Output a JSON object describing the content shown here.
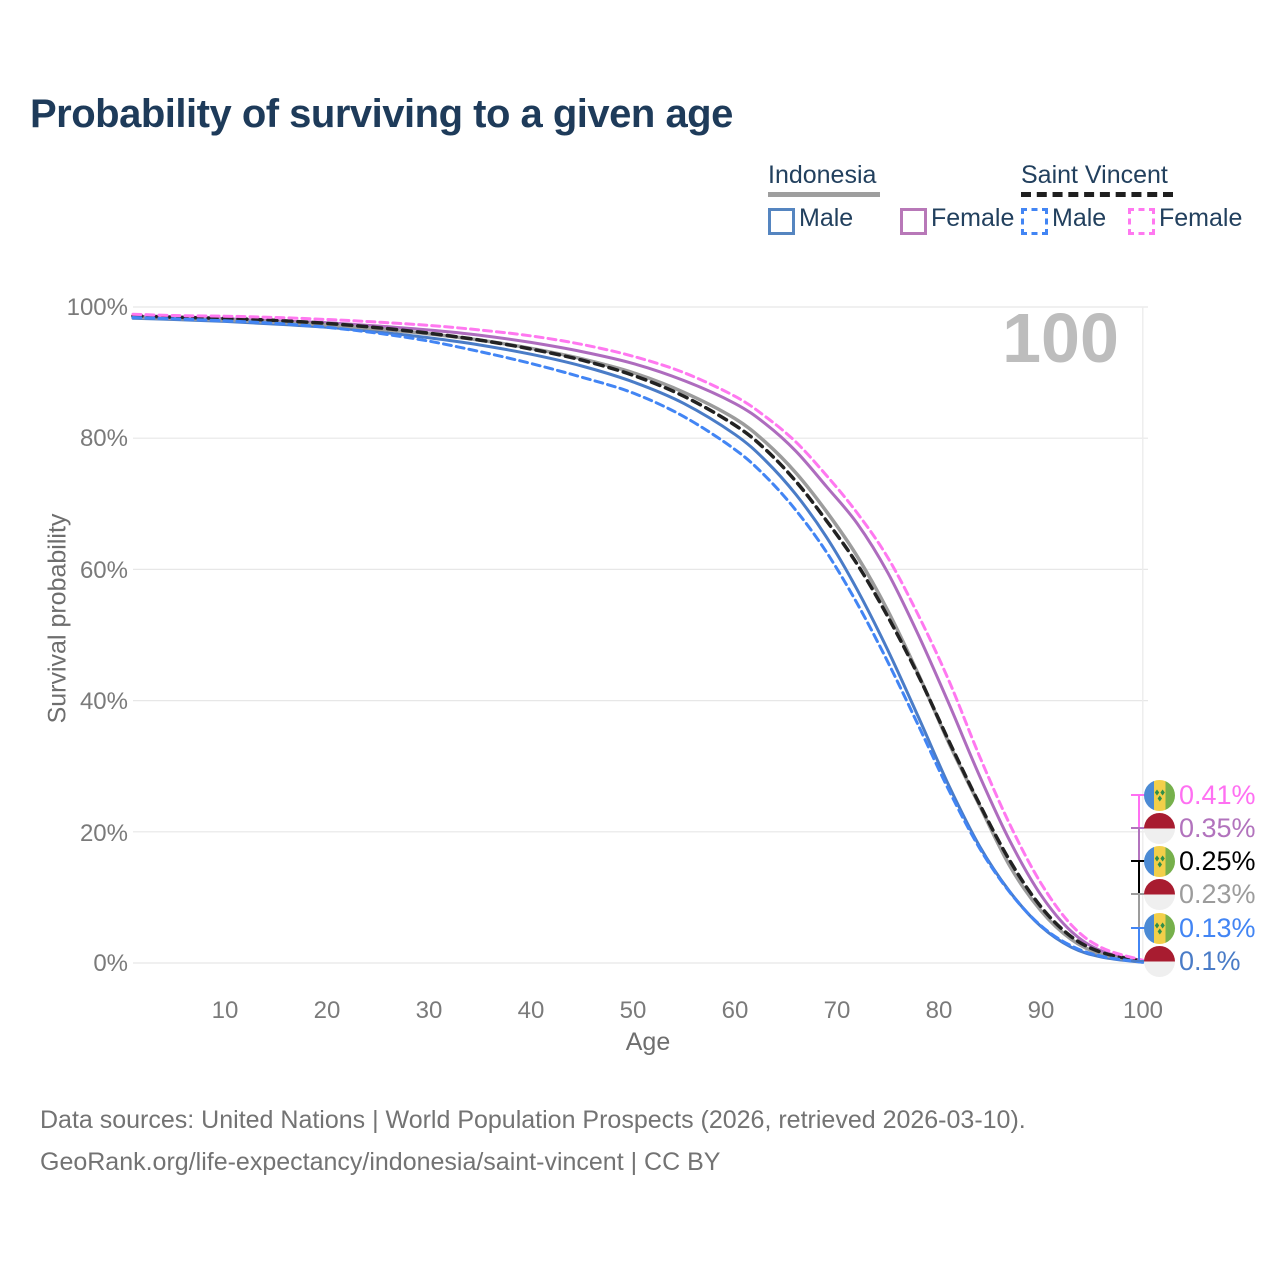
{
  "title": "Probability of surviving to a given age",
  "watermark_age": "100",
  "legend": {
    "groups": [
      {
        "name": "Indonesia",
        "line_style": "solid",
        "line_color": "#9e9e9e",
        "items": [
          {
            "label": "Male",
            "box_color": "#5585c0",
            "box_style": "solid"
          },
          {
            "label": "Female",
            "box_color": "#b878b8",
            "box_style": "solid"
          }
        ]
      },
      {
        "name": "Saint Vincent",
        "line_style": "dashed",
        "line_color": "#1f1f1f",
        "items": [
          {
            "label": "Male",
            "box_color": "#4285f4",
            "box_style": "dashed"
          },
          {
            "label": "Female",
            "box_color": "#ff78f0",
            "box_style": "dashed"
          }
        ]
      }
    ]
  },
  "chart_data": {
    "type": "line",
    "title": "Probability of surviving to a given age",
    "xlabel": "Age",
    "ylabel": "Survival probability",
    "xlim": [
      1,
      100
    ],
    "ylim": [
      0,
      100
    ],
    "grid": "horizontal",
    "current_age_marker": 100,
    "xticks": [
      {
        "label": "10",
        "value": 10
      },
      {
        "label": "20",
        "value": 20
      },
      {
        "label": "30",
        "value": 30
      },
      {
        "label": "40",
        "value": 40
      },
      {
        "label": "50",
        "value": 50
      },
      {
        "label": "60",
        "value": 60
      },
      {
        "label": "70",
        "value": 70
      },
      {
        "label": "80",
        "value": 80
      },
      {
        "label": "90",
        "value": 90
      },
      {
        "label": "100",
        "value": 100
      }
    ],
    "yticks": [
      {
        "label": "100%",
        "value": 100
      },
      {
        "label": "80%",
        "value": 80
      },
      {
        "label": "60%",
        "value": 60
      },
      {
        "label": "40%",
        "value": 40
      },
      {
        "label": "20%",
        "value": 20
      },
      {
        "label": "0%",
        "value": 0
      }
    ],
    "ages": [
      1,
      5,
      10,
      15,
      20,
      25,
      30,
      35,
      40,
      45,
      50,
      55,
      60,
      63,
      66,
      69,
      72,
      75,
      78,
      81,
      84,
      87,
      90,
      93,
      96,
      100
    ],
    "series": [
      {
        "name": "Indonesia Male",
        "color": "#4a7cc7",
        "dash": "",
        "width": 3,
        "values": [
          98.3,
          98.1,
          97.8,
          97.4,
          96.9,
          96.2,
          95.3,
          94.2,
          92.8,
          91.0,
          88.6,
          85.3,
          80.6,
          76.6,
          71.4,
          64.9,
          56.9,
          47.7,
          37.5,
          27.0,
          17.8,
          10.8,
          5.6,
          2.4,
          0.9,
          0.1
        ]
      },
      {
        "name": "Indonesia Female",
        "color": "#ae6cbe",
        "dash": "",
        "width": 3,
        "values": [
          98.6,
          98.4,
          98.2,
          97.9,
          97.6,
          97.1,
          96.5,
          95.7,
          94.6,
          93.2,
          91.4,
          88.8,
          85.3,
          82.2,
          78.0,
          72.6,
          67.0,
          59.5,
          50.0,
          39.5,
          28.5,
          18.5,
          10.4,
          4.8,
          1.8,
          0.35
        ]
      },
      {
        "name": "Indonesia Total",
        "color": "#9c9c9c",
        "dash": "",
        "width": 3.5,
        "values": [
          98.45,
          98.25,
          98.0,
          97.65,
          97.25,
          96.65,
          95.9,
          94.95,
          93.7,
          92.1,
          90.0,
          87.0,
          83.0,
          79.4,
          74.7,
          68.8,
          62.0,
          53.7,
          44.0,
          33.5,
          24.0,
          14.7,
          8.0,
          3.6,
          1.3,
          0.23
        ]
      },
      {
        "name": "Saint Vincent Total",
        "color": "#222222",
        "dash": "9 6",
        "width": 3.5,
        "values": [
          98.65,
          98.45,
          98.25,
          97.95,
          97.5,
          96.85,
          96.0,
          94.95,
          93.6,
          91.9,
          89.6,
          86.4,
          82.0,
          78.3,
          73.4,
          67.4,
          60.8,
          52.8,
          43.8,
          33.8,
          24.2,
          15.5,
          8.6,
          4.0,
          1.6,
          0.25
        ]
      },
      {
        "name": "Saint Vincent Male",
        "color": "#4285f4",
        "dash": "8 5",
        "width": 3,
        "values": [
          98.4,
          98.2,
          97.9,
          97.5,
          96.9,
          96.0,
          94.8,
          93.2,
          91.4,
          89.3,
          86.9,
          83.3,
          78.3,
          74.2,
          69.0,
          62.6,
          54.8,
          45.9,
          36.2,
          26.3,
          17.5,
          10.7,
          5.7,
          2.6,
          1.0,
          0.13
        ]
      },
      {
        "name": "Saint Vincent Female",
        "color": "#ff78f0",
        "dash": "8 5",
        "width": 3,
        "values": [
          98.9,
          98.7,
          98.6,
          98.4,
          98.1,
          97.7,
          97.2,
          96.5,
          95.6,
          94.3,
          92.5,
          90.0,
          86.4,
          83.3,
          79.4,
          74.3,
          68.6,
          61.8,
          53.0,
          43.0,
          31.5,
          21.0,
          12.2,
          5.8,
          2.3,
          0.41
        ]
      }
    ],
    "end_labels": [
      {
        "text": "0.41%",
        "color": "#ff70f2",
        "flag": "saint-vincent",
        "series": "Saint Vincent Female"
      },
      {
        "text": "0.35%",
        "color": "#b273bd",
        "flag": "indonesia",
        "series": "Indonesia Female"
      },
      {
        "text": "0.25%",
        "color": "#000000",
        "flag": "saint-vincent",
        "series": "Saint Vincent Total"
      },
      {
        "text": "0.23%",
        "color": "#9c9c9c",
        "flag": "indonesia",
        "series": "Indonesia Total"
      },
      {
        "text": "0.13%",
        "color": "#4285f4",
        "flag": "saint-vincent",
        "series": "Saint Vincent Male"
      },
      {
        "text": "0.1%",
        "color": "#4a7cc7",
        "flag": "indonesia",
        "series": "Indonesia Male"
      }
    ]
  },
  "footer": {
    "line1": "Data sources: United Nations | World Population Prospects (2026, retrieved 2026-03-10).",
    "line2": "GeoRank.org/life-expectancy/indonesia/saint-vincent | CC BY"
  }
}
